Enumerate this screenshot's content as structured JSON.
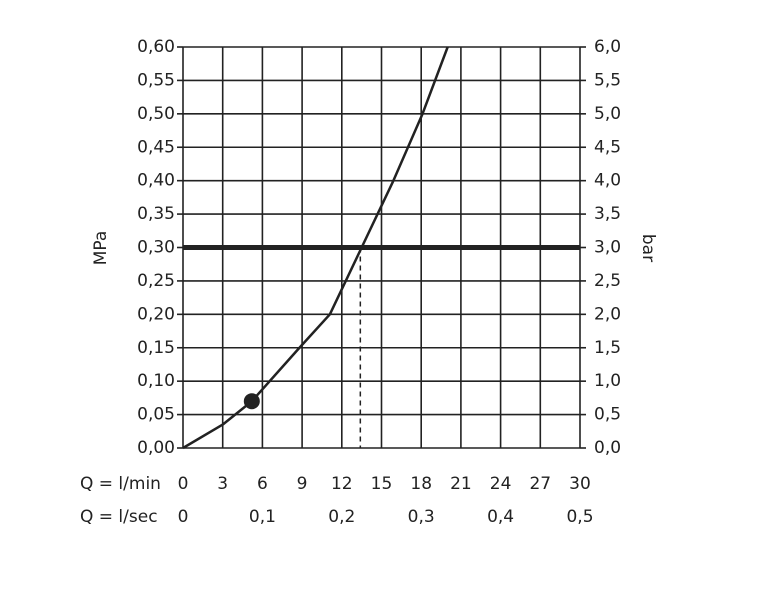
{
  "chart_data": {
    "type": "line",
    "y_label": "MPa",
    "y2_label": "bar",
    "x_label": "Q = l/min",
    "x2_label": "Q = l/sec",
    "x": [
      0,
      3,
      5.2,
      8.8,
      11.1,
      13.5,
      15.9,
      18.1,
      20.0
    ],
    "values": [
      0,
      0.035,
      0.07,
      0.15,
      0.2,
      0.3,
      0.4,
      0.5,
      0.6
    ],
    "color": "#222222",
    "marker": {
      "x": 5.2,
      "y": 0.07
    },
    "hline": 0.3,
    "vline": 13.4,
    "xlim": [
      0,
      30
    ],
    "xticks": [
      0,
      3,
      6,
      9,
      12,
      15,
      18,
      21,
      24,
      27,
      30
    ],
    "x2lim": [
      0,
      0.5
    ],
    "x2ticks": [
      0,
      {
        "value": 0.1,
        "label": "0,1"
      },
      {
        "value": 0.2,
        "label": "0,2"
      },
      {
        "value": 0.3,
        "label": "0,3"
      },
      {
        "value": 0.4,
        "label": "0,4"
      },
      {
        "value": 0.5,
        "label": "0,5"
      }
    ],
    "ylim": [
      0,
      0.6
    ],
    "yticks": [
      {
        "value": 0,
        "label": "0,00"
      },
      {
        "value": 0.05,
        "label": "0,05"
      },
      {
        "value": 0.1,
        "label": "0,10"
      },
      {
        "value": 0.15,
        "label": "0,15"
      },
      {
        "value": 0.2,
        "label": "0,20"
      },
      {
        "value": 0.25,
        "label": "0,25"
      },
      {
        "value": 0.3,
        "label": "0,30"
      },
      {
        "value": 0.35,
        "label": "0,35"
      },
      {
        "value": 0.4,
        "label": "0,40"
      },
      {
        "value": 0.45,
        "label": "0,45"
      },
      {
        "value": 0.5,
        "label": "0,50"
      },
      {
        "value": 0.55,
        "label": "0,55"
      },
      {
        "value": 0.6,
        "label": "0,60"
      }
    ],
    "y2lim": [
      0,
      6
    ],
    "y2ticks": [
      {
        "value": 0,
        "label": "0,0"
      },
      {
        "value": 0.5,
        "label": "0,5"
      },
      {
        "value": 1,
        "label": "1,0"
      },
      {
        "value": 1.5,
        "label": "1,5"
      },
      {
        "value": 2,
        "label": "2,0"
      },
      {
        "value": 2.5,
        "label": "2,5"
      },
      {
        "value": 3,
        "label": "3,0"
      },
      {
        "value": 3.5,
        "label": "3,5"
      },
      {
        "value": 4,
        "label": "4,0"
      },
      {
        "value": 4.5,
        "label": "4,5"
      },
      {
        "value": 5,
        "label": "5,0"
      },
      {
        "value": 5.5,
        "label": "5,5"
      },
      {
        "value": 6,
        "label": "6,0"
      }
    ],
    "grid": true
  }
}
